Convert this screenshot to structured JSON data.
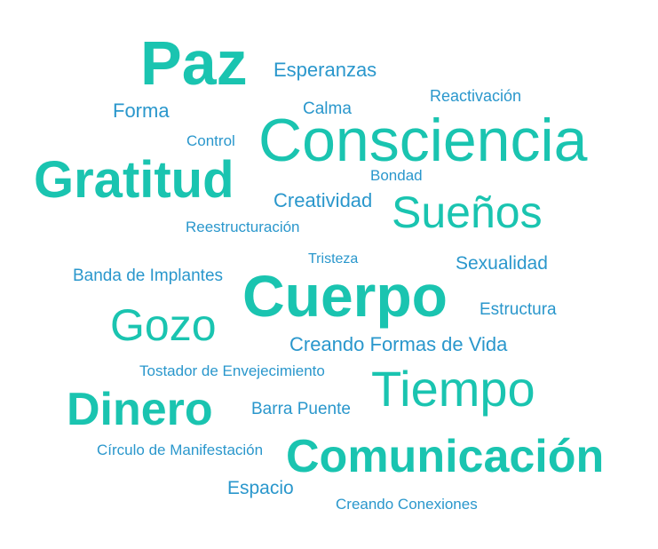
{
  "colors": {
    "background": "#ffffff",
    "teal": "#1ac4b0",
    "blue": "#2a97cc"
  },
  "words": {
    "paz": "Paz",
    "esperanzas": "Esperanzas",
    "reactivacion": "Reactivación",
    "forma": "Forma",
    "calma": "Calma",
    "consciencia": "Consciencia",
    "control": "Control",
    "gratitud": "Gratitud",
    "bondad": "Bondad",
    "creatividad": "Creatividad",
    "suenos": "Sueños",
    "reestructuracion": "Reestructuración",
    "tristeza": "Tristeza",
    "sexualidad": "Sexualidad",
    "banda_de_implantes": "Banda de Implantes",
    "cuerpo": "Cuerpo",
    "gozo": "Gozo",
    "estructura": "Estructura",
    "creando_formas_de_vida": "Creando Formas de Vida",
    "tostador_de_envejecimiento": "Tostador de Envejecimiento",
    "tiempo": "Tiempo",
    "dinero": "Dinero",
    "barra_puente": "Barra Puente",
    "circulo_de_manifestacion": "Círculo de Manifestación",
    "comunicacion": "Comunicación",
    "espacio": "Espacio",
    "creando_conexiones": "Creando Conexiones"
  }
}
